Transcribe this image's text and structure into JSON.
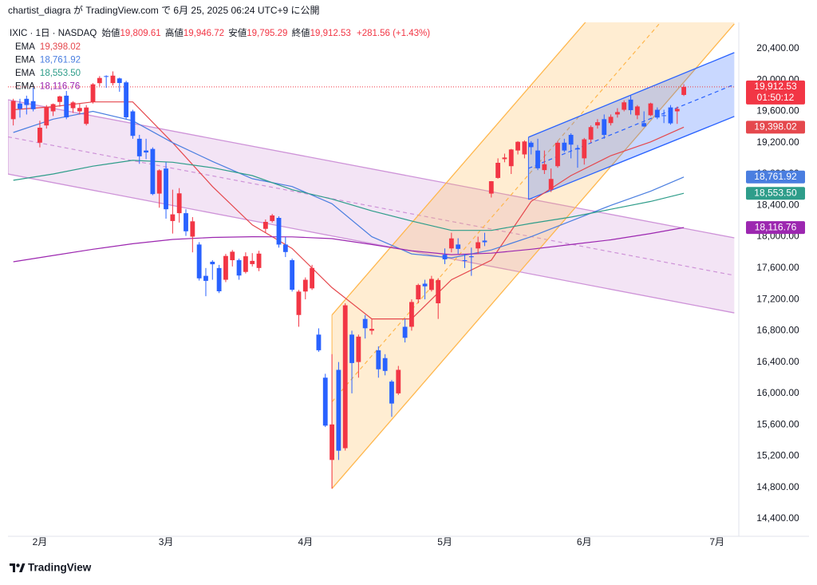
{
  "publish_line": "chartist_diagra が TradingView.com で 6月 25, 2025 06:24 UTC+9 に公開",
  "footer": "TradingView",
  "chart_data": {
    "type": "candlestick",
    "symbol": "IXIC · 1日 · NASDAQ",
    "ohlc_labels": [
      {
        "name": "始値",
        "value": "19,809.61"
      },
      {
        "name": "高値",
        "value": "19,946.72"
      },
      {
        "name": "安値",
        "value": "19,795.29"
      },
      {
        "name": "終値",
        "value": "19,912.53"
      }
    ],
    "change_label": "+281.56 (+1.43%)",
    "countdown": "01:50:12",
    "up_color": "#f23645",
    "down_color": "#2962ff",
    "xlim": [
      -0.8,
      108.8
    ],
    "ylim": [
      14175,
      20736
    ],
    "grid": false,
    "xticks": [
      {
        "value": 4,
        "label": "2月"
      },
      {
        "value": 23,
        "label": "3月"
      },
      {
        "value": 44,
        "label": "4月"
      },
      {
        "value": 65,
        "label": "5月"
      },
      {
        "value": 86,
        "label": "6月"
      },
      {
        "value": 106,
        "label": "7月"
      }
    ],
    "yticks": [
      {
        "value": 14400,
        "label": "14,400.00"
      },
      {
        "value": 14800,
        "label": "14,800.00"
      },
      {
        "value": 15200,
        "label": "15,200.00"
      },
      {
        "value": 15600,
        "label": "15,600.00"
      },
      {
        "value": 16000,
        "label": "16,000.00"
      },
      {
        "value": 16400,
        "label": "16,400.00"
      },
      {
        "value": 16800,
        "label": "16,800.00"
      },
      {
        "value": 17200,
        "label": "17,200.00"
      },
      {
        "value": 17600,
        "label": "17,600.00"
      },
      {
        "value": 18000,
        "label": "18,000.00"
      },
      {
        "value": 18400,
        "label": "18,400.00"
      },
      {
        "value": 18800,
        "label": "18,800.00"
      },
      {
        "value": 19200,
        "label": "19,200.00"
      },
      {
        "value": 19600,
        "label": "19,600.00"
      },
      {
        "value": 20000,
        "label": "20,000.00"
      },
      {
        "value": 20400,
        "label": "20,400.00"
      }
    ],
    "open": [
      19500,
      19700,
      19760,
      19730,
      19200,
      19420,
      19600,
      19720,
      19800,
      19640,
      19600,
      19440,
      19720,
      19960,
      20050,
      19960,
      20020,
      19970,
      19600,
      19250,
      19100,
      19120,
      18550,
      18870,
      18200,
      18300,
      18300,
      18000,
      17900,
      17500,
      17680,
      17600,
      17450,
      17700,
      17700,
      17550,
      17650,
      17600,
      18100,
      18200,
      18240,
      17900,
      17700,
      17000,
      17300,
      17340,
      16750,
      16200,
      15150,
      16300,
      15300,
      16750,
      16400,
      16950,
      16800,
      16550,
      16450,
      16150,
      16000,
      16850,
      16850,
      17200,
      17400,
      17320,
      17150,
      17770,
      17850,
      17900,
      17700,
      17750,
      17850,
      17950,
      18550,
      18750,
      18990,
      18900,
      19100,
      19050,
      19200,
      19100,
      18850,
      18600,
      18900,
      19200,
      19300,
      19130,
      19000,
      19240,
      19420,
      19500,
      19450,
      19560,
      19620,
      19750,
      19550,
      19450,
      19550,
      19620,
      19550,
      19650,
      19600,
      19809.61
    ],
    "high": [
      19760,
      19760,
      19800,
      19900,
      19480,
      19680,
      19700,
      19800,
      19860,
      19730,
      19700,
      19680,
      19960,
      20050,
      20060,
      20110,
      20030,
      19990,
      19620,
      19300,
      19250,
      19140,
      18860,
      18950,
      18600,
      18620,
      18350,
      18250,
      17930,
      17600,
      17700,
      17640,
      17780,
      17830,
      17720,
      17800,
      17790,
      17820,
      18220,
      18290,
      18260,
      18000,
      17720,
      17320,
      17480,
      17640,
      16830,
      16250,
      16500,
      16400,
      17150,
      16800,
      16750,
      17000,
      16950,
      16600,
      16500,
      16170,
      16350,
      16950,
      17200,
      17400,
      17450,
      17500,
      17470,
      17850,
      18050,
      17980,
      17780,
      17860,
      18000,
      18050,
      18710,
      19000,
      19060,
      19120,
      19220,
      19230,
      19220,
      19250,
      19100,
      18870,
      19220,
      19250,
      19320,
      19170,
      19260,
      19420,
      19500,
      19560,
      19560,
      19640,
      19740,
      19800,
      19680,
      19600,
      19710,
      19650,
      19620,
      19680,
      19660,
      19946.72
    ],
    "low": [
      19420,
      19520,
      19560,
      19600,
      19140,
      19380,
      19540,
      19660,
      19500,
      19580,
      19560,
      19420,
      19700,
      19920,
      19900,
      19930,
      19850,
      19500,
      19250,
      18930,
      18990,
      18530,
      18370,
      18230,
      18040,
      18180,
      18010,
      17800,
      17440,
      17240,
      17450,
      17280,
      17420,
      17620,
      17450,
      17530,
      17620,
      17560,
      18050,
      18180,
      17860,
      17740,
      17300,
      16850,
      17200,
      17320,
      16530,
      15570,
      14784,
      15150,
      15270,
      16000,
      16200,
      16700,
      16750,
      16200,
      16230,
      15700,
      15980,
      16650,
      16800,
      17150,
      17200,
      17300,
      16950,
      17650,
      17800,
      17780,
      17600,
      17500,
      17780,
      17880,
      18500,
      18740,
      18950,
      18800,
      19050,
      19000,
      19050,
      18850,
      18800,
      18570,
      18880,
      19080,
      19000,
      18880,
      18920,
      19200,
      19380,
      19250,
      19420,
      19520,
      19600,
      19560,
      19500,
      19400,
      19540,
      19500,
      19450,
      19430,
      19440,
      19795.29
    ],
    "close": [
      19733,
      19632,
      19681,
      19627,
      19391,
      19654,
      19692,
      19791,
      19523,
      19714,
      19643,
      19649,
      19945,
      20026,
      20041,
      20056,
      19962,
      19524,
      19287,
      19026,
      19075,
      18544,
      18847,
      18350,
      18285,
      18553,
      18069,
      18196,
      17468,
      17436,
      17648,
      17303,
      17754,
      17808,
      17504,
      17750,
      17691,
      17784,
      18189,
      18271,
      17899,
      17804,
      17323,
      17299,
      17450,
      17601,
      16550,
      15588,
      15603,
      15268,
      17124,
      16387,
      16724,
      16831,
      16823,
      16307,
      16286,
      15870,
      16300,
      16709,
      17166,
      17383,
      17366,
      17461,
      17446,
      17711,
      17978,
      17844,
      17690,
      17738,
      17929,
      17929,
      18708,
      18943,
      19010,
      19113,
      19211,
      19215,
      19143,
      18873,
      18925,
      18737,
      19199,
      19100,
      19175,
      19114,
      19243,
      19399,
      19461,
      19299,
      19530,
      19591,
      19715,
      19615,
      19662,
      19407,
      19701,
      19521,
      19546,
      19447,
      19631,
      19912.53
    ],
    "series": [
      {
        "name": "EMA",
        "color": "#e5484d",
        "last_value_label": "19,398.02",
        "x": [
          0,
          6,
          12,
          18,
          24,
          30,
          36,
          42,
          48,
          54,
          60,
          66,
          72,
          78,
          84,
          90,
          96,
          101
        ],
        "values": [
          19620,
          19660,
          19720,
          19720,
          19200,
          18640,
          18150,
          17850,
          17350,
          16950,
          16950,
          17450,
          17700,
          18450,
          18780,
          19035,
          19210,
          19398.02
        ]
      },
      {
        "name": "EMA",
        "color": "#4a7ee0",
        "last_value_label": "18,761.92",
        "x": [
          0,
          6,
          12,
          18,
          24,
          30,
          36,
          42,
          48,
          54,
          60,
          66,
          72,
          78,
          84,
          90,
          96,
          101
        ],
        "values": [
          19330,
          19500,
          19600,
          19480,
          19200,
          18960,
          18740,
          18640,
          18420,
          18000,
          17780,
          17730,
          17830,
          18000,
          18200,
          18400,
          18580,
          18761.92
        ]
      },
      {
        "name": "EMA",
        "color": "#2e9d8a",
        "last_value_label": "18,553.50",
        "x": [
          0,
          6,
          12,
          18,
          24,
          30,
          36,
          42,
          48,
          54,
          60,
          66,
          72,
          78,
          84,
          90,
          96,
          101
        ],
        "values": [
          18720,
          18800,
          18900,
          18975,
          18950,
          18880,
          18780,
          18600,
          18480,
          18330,
          18200,
          18080,
          18080,
          18170,
          18250,
          18350,
          18450,
          18553.5
        ]
      },
      {
        "name": "EMA",
        "color": "#9c27b0",
        "last_value_label": "18,116.76",
        "x": [
          0,
          6,
          12,
          18,
          24,
          30,
          36,
          42,
          48,
          54,
          60,
          66,
          72,
          78,
          84,
          90,
          96,
          101
        ],
        "values": [
          17680,
          17760,
          17840,
          17910,
          17965,
          17990,
          18000,
          17998,
          17975,
          17900,
          17820,
          17770,
          17790,
          17840,
          17900,
          17960,
          18040,
          18116.76
        ]
      }
    ],
    "channels": [
      {
        "color": "#ce93d8",
        "x": [
          -0.8,
          108.6
        ],
        "upper": [
          19748,
          17985
        ],
        "lower": [
          18800,
          17027
        ]
      },
      {
        "color": "#ffb74d",
        "x": [
          48,
          108.6
        ],
        "upper": [
          17000,
          22932
        ],
        "lower": [
          14784,
          20716
        ]
      },
      {
        "color": "#2962ff",
        "x": [
          77.6,
          108.6
        ],
        "upper": [
          19270,
          20350
        ],
        "lower": [
          18475,
          19535
        ]
      }
    ]
  }
}
